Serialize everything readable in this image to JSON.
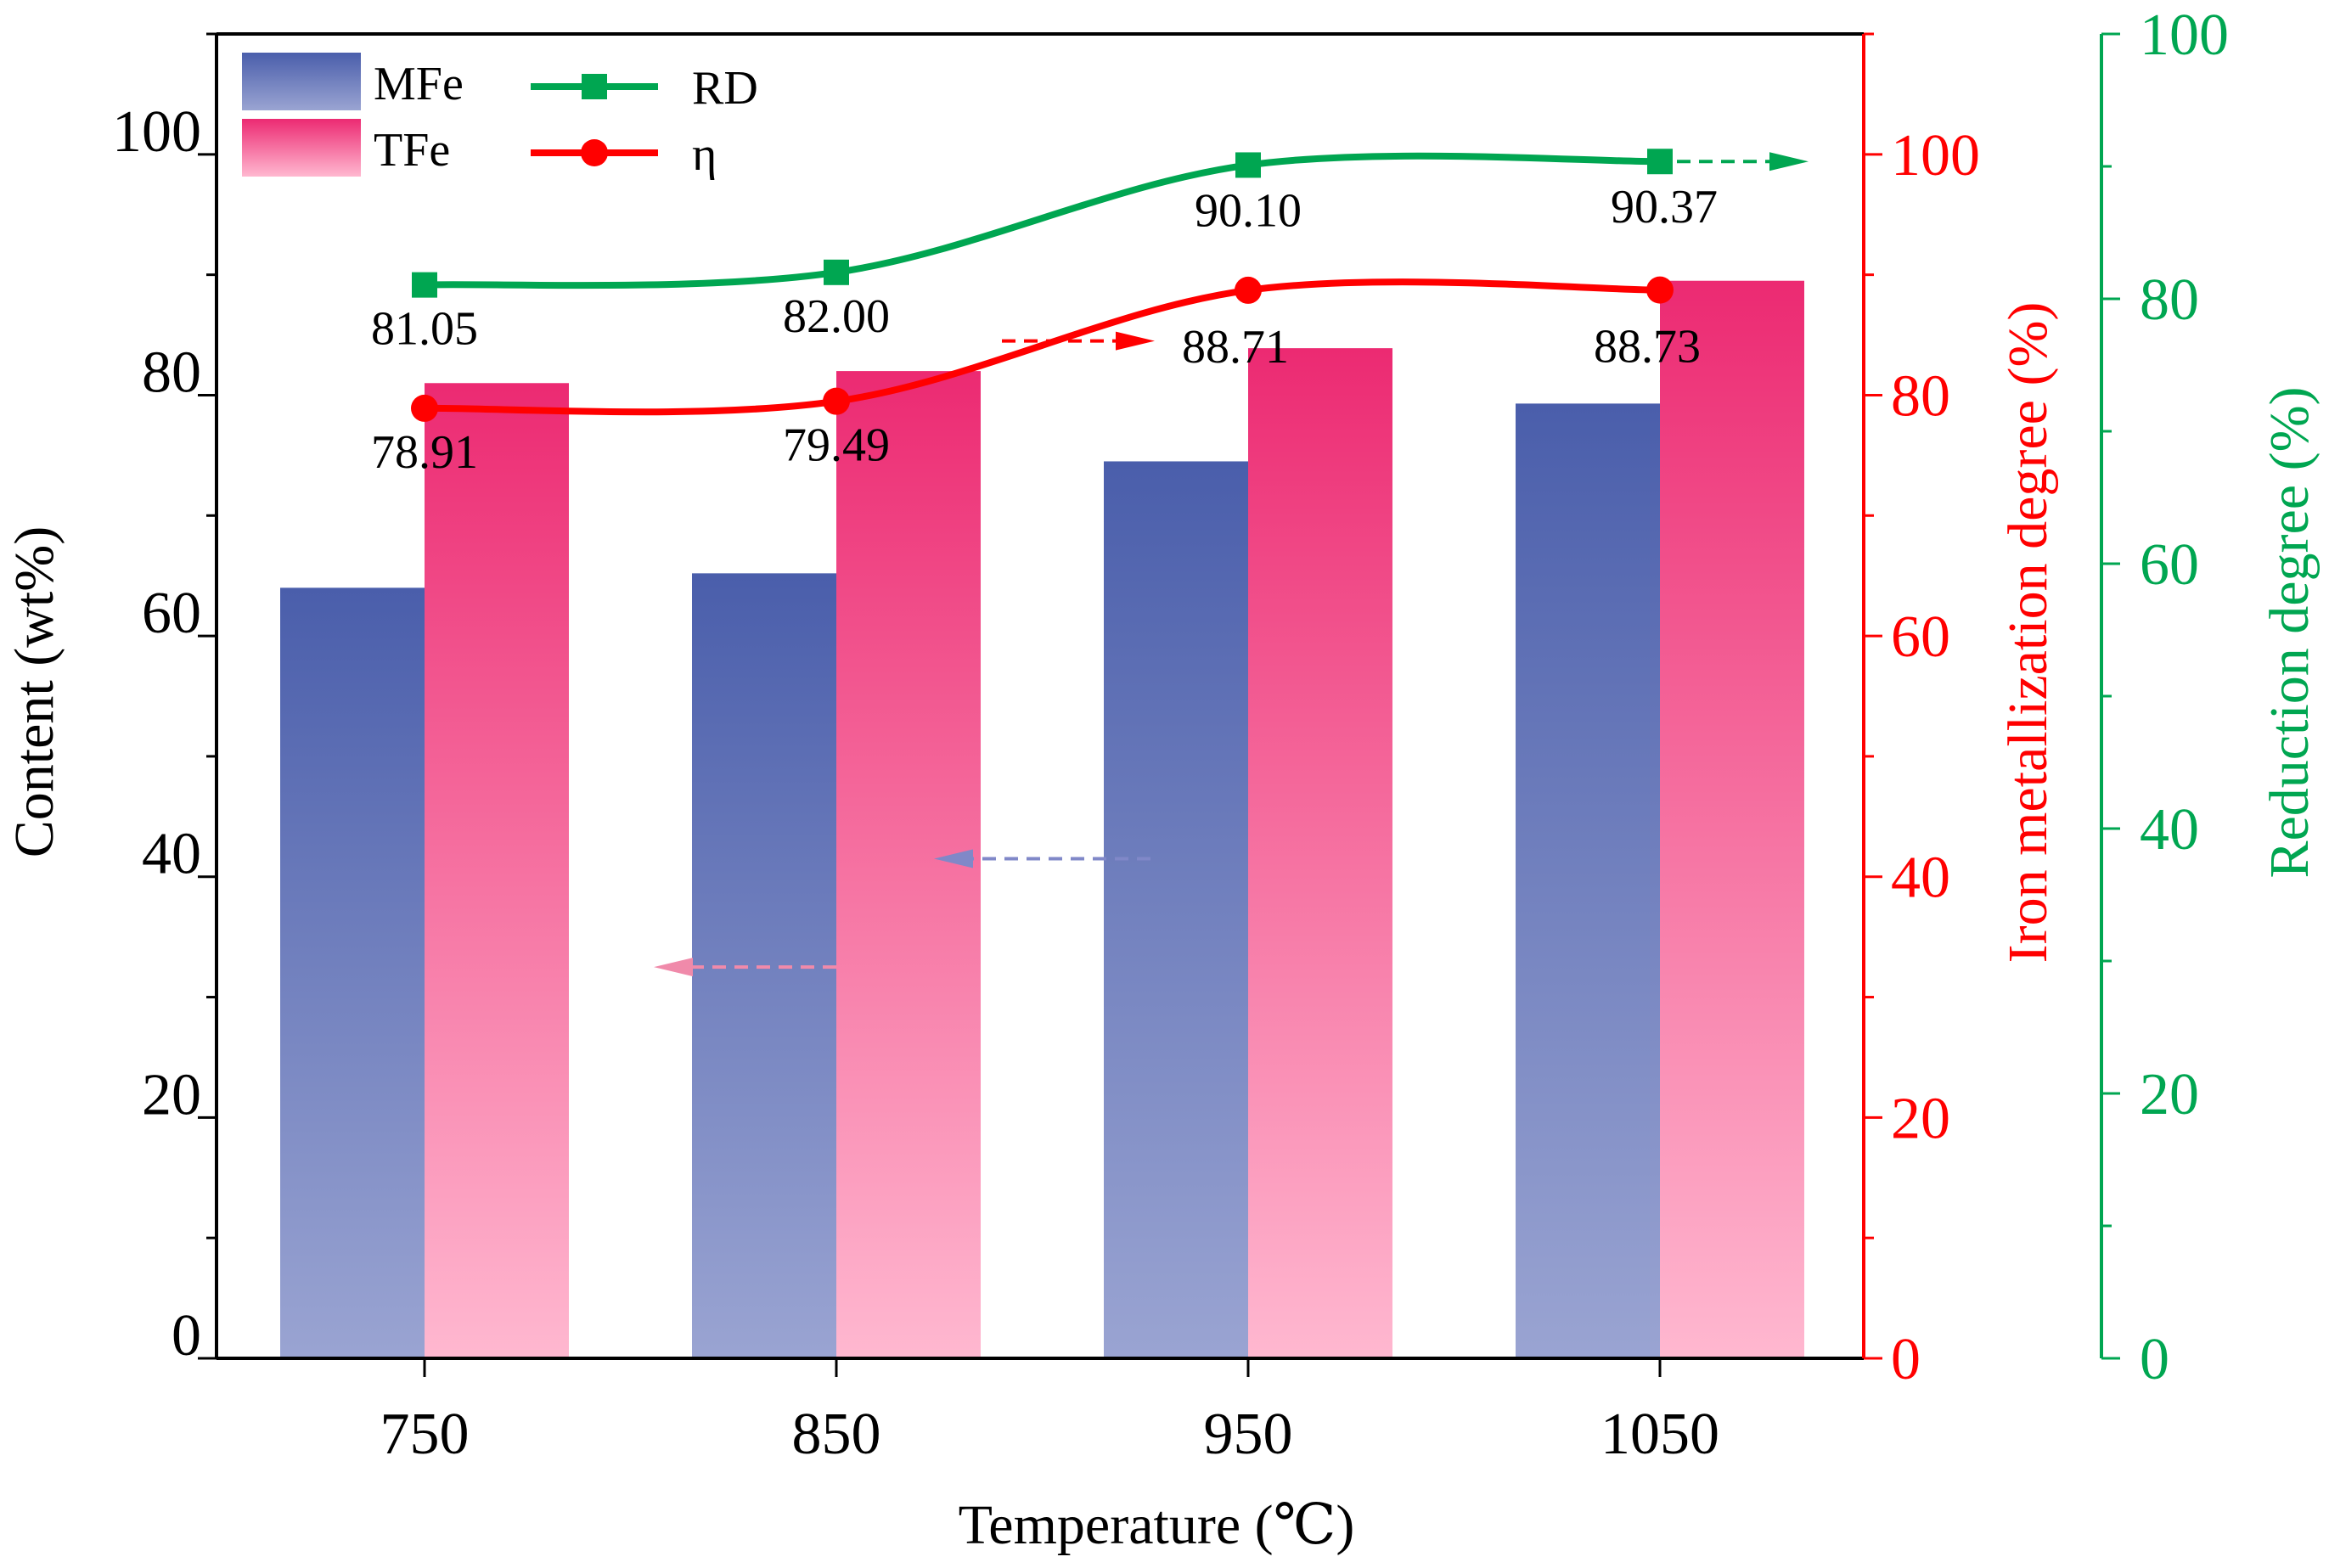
{
  "chart_data": {
    "type": "bar+line",
    "categories": [
      "750",
      "850",
      "950",
      "1050"
    ],
    "xlabel": "Temperature (℃)",
    "ylabel_left": "Content (wt%)",
    "ylabel_right1": "Iron metallization degree (%)",
    "ylabel_right2": "Reduction degree (%)",
    "ylim_left": [
      0,
      110
    ],
    "ylim_right1": [
      0,
      110
    ],
    "ylim_right2": [
      0,
      100
    ],
    "left_ticks": [
      "0",
      "20",
      "40",
      "60",
      "80",
      "100"
    ],
    "right1_ticks": [
      "0",
      "20",
      "40",
      "60",
      "80",
      "100"
    ],
    "right2_ticks": [
      "0",
      "20",
      "40",
      "60",
      "80",
      "100"
    ],
    "bars": [
      {
        "name": "MFe",
        "axis": "left",
        "values": [
          64,
          65.2,
          74.5,
          79.3
        ],
        "color_top": "#4a5eab",
        "color_bottom": "#9aa4d2"
      },
      {
        "name": "TFe",
        "axis": "left",
        "values": [
          81,
          82,
          83.9,
          89.5
        ],
        "color_top": "#ec2a72",
        "color_bottom": "#ffb8d0"
      }
    ],
    "lines": [
      {
        "name": "RD",
        "axis": "right2",
        "values": [
          81.05,
          82.0,
          90.1,
          90.37
        ],
        "labels": [
          "81.05",
          "82.00",
          "90.10",
          "90.37"
        ],
        "color": "#00a651",
        "marker": "square"
      },
      {
        "name": "η",
        "axis": "right1",
        "values": [
          78.91,
          79.49,
          88.71,
          88.73
        ],
        "labels": [
          "78.91",
          "79.49",
          "88.71",
          "88.73"
        ],
        "color": "#ff0000",
        "marker": "circle"
      }
    ],
    "legend": [
      {
        "label": "MFe",
        "kind": "bar",
        "series": "MFe"
      },
      {
        "label": "TFe",
        "kind": "bar",
        "series": "TFe"
      },
      {
        "label": "RD",
        "kind": "line",
        "series": "RD"
      },
      {
        "label": "η",
        "kind": "line",
        "series": "η"
      }
    ],
    "legend_position": "top-left"
  }
}
